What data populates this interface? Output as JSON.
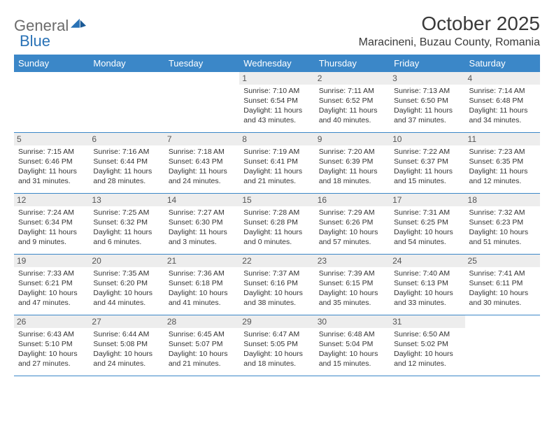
{
  "logo": {
    "word1": "General",
    "word2": "Blue"
  },
  "title": "October 2025",
  "location": "Maracineni, Buzau County, Romania",
  "colors": {
    "header_bg": "#3b87c8",
    "header_text": "#ffffff",
    "daynum_bg": "#ededed",
    "border": "#3b87c8",
    "logo_gray": "#6b6b6b",
    "logo_blue": "#2972b6"
  },
  "day_names": [
    "Sunday",
    "Monday",
    "Tuesday",
    "Wednesday",
    "Thursday",
    "Friday",
    "Saturday"
  ],
  "weeks": [
    [
      {
        "n": "",
        "sr": "",
        "ss": "",
        "dl": ""
      },
      {
        "n": "",
        "sr": "",
        "ss": "",
        "dl": ""
      },
      {
        "n": "",
        "sr": "",
        "ss": "",
        "dl": ""
      },
      {
        "n": "1",
        "sr": "Sunrise: 7:10 AM",
        "ss": "Sunset: 6:54 PM",
        "dl": "Daylight: 11 hours and 43 minutes."
      },
      {
        "n": "2",
        "sr": "Sunrise: 7:11 AM",
        "ss": "Sunset: 6:52 PM",
        "dl": "Daylight: 11 hours and 40 minutes."
      },
      {
        "n": "3",
        "sr": "Sunrise: 7:13 AM",
        "ss": "Sunset: 6:50 PM",
        "dl": "Daylight: 11 hours and 37 minutes."
      },
      {
        "n": "4",
        "sr": "Sunrise: 7:14 AM",
        "ss": "Sunset: 6:48 PM",
        "dl": "Daylight: 11 hours and 34 minutes."
      }
    ],
    [
      {
        "n": "5",
        "sr": "Sunrise: 7:15 AM",
        "ss": "Sunset: 6:46 PM",
        "dl": "Daylight: 11 hours and 31 minutes."
      },
      {
        "n": "6",
        "sr": "Sunrise: 7:16 AM",
        "ss": "Sunset: 6:44 PM",
        "dl": "Daylight: 11 hours and 28 minutes."
      },
      {
        "n": "7",
        "sr": "Sunrise: 7:18 AM",
        "ss": "Sunset: 6:43 PM",
        "dl": "Daylight: 11 hours and 24 minutes."
      },
      {
        "n": "8",
        "sr": "Sunrise: 7:19 AM",
        "ss": "Sunset: 6:41 PM",
        "dl": "Daylight: 11 hours and 21 minutes."
      },
      {
        "n": "9",
        "sr": "Sunrise: 7:20 AM",
        "ss": "Sunset: 6:39 PM",
        "dl": "Daylight: 11 hours and 18 minutes."
      },
      {
        "n": "10",
        "sr": "Sunrise: 7:22 AM",
        "ss": "Sunset: 6:37 PM",
        "dl": "Daylight: 11 hours and 15 minutes."
      },
      {
        "n": "11",
        "sr": "Sunrise: 7:23 AM",
        "ss": "Sunset: 6:35 PM",
        "dl": "Daylight: 11 hours and 12 minutes."
      }
    ],
    [
      {
        "n": "12",
        "sr": "Sunrise: 7:24 AM",
        "ss": "Sunset: 6:34 PM",
        "dl": "Daylight: 11 hours and 9 minutes."
      },
      {
        "n": "13",
        "sr": "Sunrise: 7:25 AM",
        "ss": "Sunset: 6:32 PM",
        "dl": "Daylight: 11 hours and 6 minutes."
      },
      {
        "n": "14",
        "sr": "Sunrise: 7:27 AM",
        "ss": "Sunset: 6:30 PM",
        "dl": "Daylight: 11 hours and 3 minutes."
      },
      {
        "n": "15",
        "sr": "Sunrise: 7:28 AM",
        "ss": "Sunset: 6:28 PM",
        "dl": "Daylight: 11 hours and 0 minutes."
      },
      {
        "n": "16",
        "sr": "Sunrise: 7:29 AM",
        "ss": "Sunset: 6:26 PM",
        "dl": "Daylight: 10 hours and 57 minutes."
      },
      {
        "n": "17",
        "sr": "Sunrise: 7:31 AM",
        "ss": "Sunset: 6:25 PM",
        "dl": "Daylight: 10 hours and 54 minutes."
      },
      {
        "n": "18",
        "sr": "Sunrise: 7:32 AM",
        "ss": "Sunset: 6:23 PM",
        "dl": "Daylight: 10 hours and 51 minutes."
      }
    ],
    [
      {
        "n": "19",
        "sr": "Sunrise: 7:33 AM",
        "ss": "Sunset: 6:21 PM",
        "dl": "Daylight: 10 hours and 47 minutes."
      },
      {
        "n": "20",
        "sr": "Sunrise: 7:35 AM",
        "ss": "Sunset: 6:20 PM",
        "dl": "Daylight: 10 hours and 44 minutes."
      },
      {
        "n": "21",
        "sr": "Sunrise: 7:36 AM",
        "ss": "Sunset: 6:18 PM",
        "dl": "Daylight: 10 hours and 41 minutes."
      },
      {
        "n": "22",
        "sr": "Sunrise: 7:37 AM",
        "ss": "Sunset: 6:16 PM",
        "dl": "Daylight: 10 hours and 38 minutes."
      },
      {
        "n": "23",
        "sr": "Sunrise: 7:39 AM",
        "ss": "Sunset: 6:15 PM",
        "dl": "Daylight: 10 hours and 35 minutes."
      },
      {
        "n": "24",
        "sr": "Sunrise: 7:40 AM",
        "ss": "Sunset: 6:13 PM",
        "dl": "Daylight: 10 hours and 33 minutes."
      },
      {
        "n": "25",
        "sr": "Sunrise: 7:41 AM",
        "ss": "Sunset: 6:11 PM",
        "dl": "Daylight: 10 hours and 30 minutes."
      }
    ],
    [
      {
        "n": "26",
        "sr": "Sunrise: 6:43 AM",
        "ss": "Sunset: 5:10 PM",
        "dl": "Daylight: 10 hours and 27 minutes."
      },
      {
        "n": "27",
        "sr": "Sunrise: 6:44 AM",
        "ss": "Sunset: 5:08 PM",
        "dl": "Daylight: 10 hours and 24 minutes."
      },
      {
        "n": "28",
        "sr": "Sunrise: 6:45 AM",
        "ss": "Sunset: 5:07 PM",
        "dl": "Daylight: 10 hours and 21 minutes."
      },
      {
        "n": "29",
        "sr": "Sunrise: 6:47 AM",
        "ss": "Sunset: 5:05 PM",
        "dl": "Daylight: 10 hours and 18 minutes."
      },
      {
        "n": "30",
        "sr": "Sunrise: 6:48 AM",
        "ss": "Sunset: 5:04 PM",
        "dl": "Daylight: 10 hours and 15 minutes."
      },
      {
        "n": "31",
        "sr": "Sunrise: 6:50 AM",
        "ss": "Sunset: 5:02 PM",
        "dl": "Daylight: 10 hours and 12 minutes."
      },
      {
        "n": "",
        "sr": "",
        "ss": "",
        "dl": ""
      }
    ]
  ]
}
